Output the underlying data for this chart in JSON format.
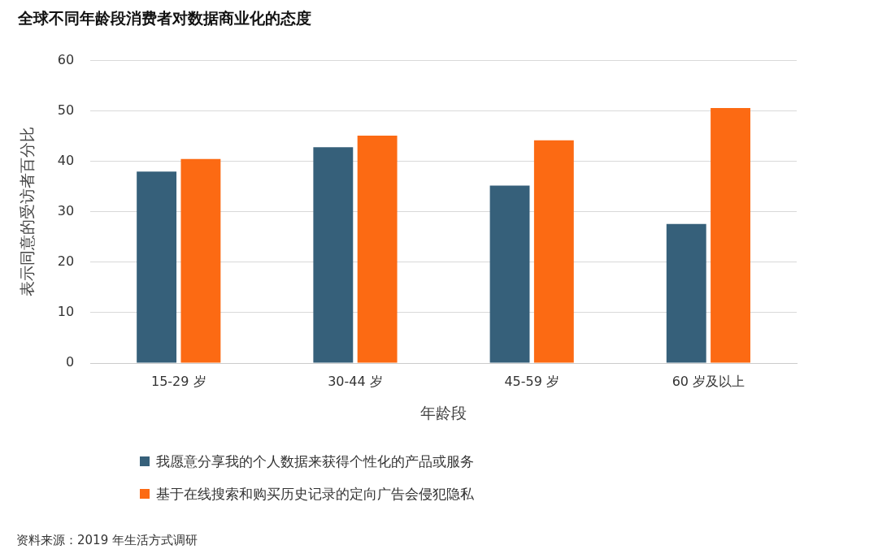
{
  "chart_data": {
    "type": "bar",
    "title": "全球不同年龄段消费者对数据商业化的态度",
    "xlabel": "年龄段",
    "ylabel": "表示同意的受访者百分比",
    "categories": [
      "15-29 岁",
      "30-44 岁",
      "45-59 岁",
      "60 岁及以上"
    ],
    "series": [
      {
        "name": "我愿意分享我的个人数据来获得个性化的产品或服务",
        "color": "#36607a",
        "values": [
          38,
          42.8,
          35.2,
          27.6
        ]
      },
      {
        "name": "基于在线搜索和购买历史记录的定向广告会侵犯隐私",
        "color": "#fc6a13",
        "values": [
          40.5,
          45.1,
          44.2,
          50.6
        ]
      }
    ],
    "ylim": [
      0,
      60
    ],
    "yticks": [
      0,
      10,
      20,
      30,
      40,
      50,
      60
    ],
    "grid": "y",
    "legend": "bottom",
    "annotations": [
      "资料来源：2019 年生活方式调研"
    ]
  }
}
